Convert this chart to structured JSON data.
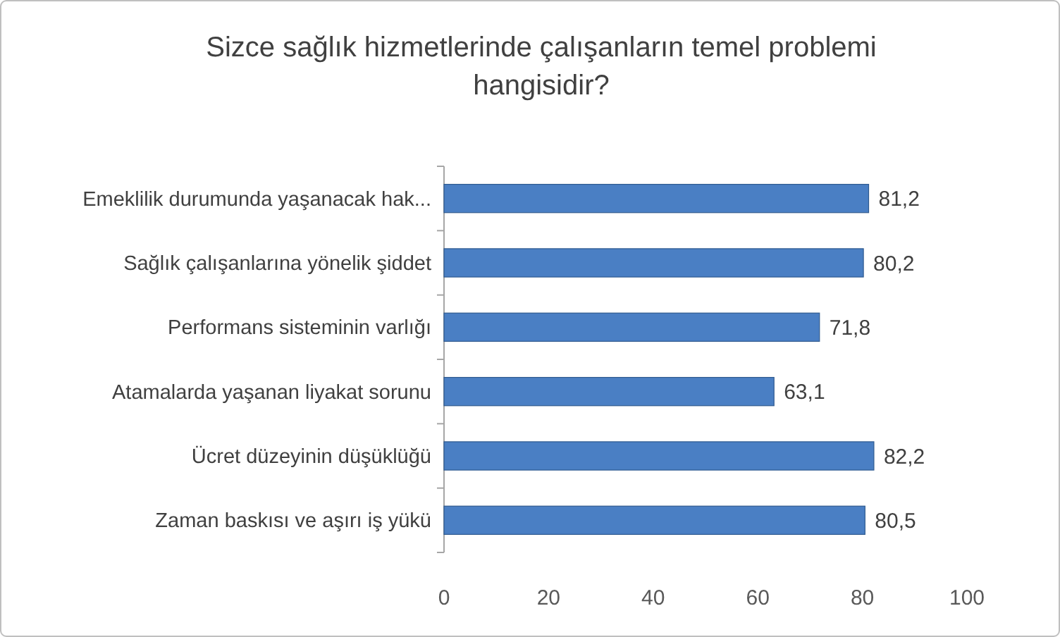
{
  "chart_data": {
    "type": "bar",
    "orientation": "horizontal",
    "title": "Sizce sağlık hizmetlerinde çalışanların temel problemi hangisidir?",
    "categories": [
      "Emeklilik durumunda yaşanacak hak...",
      "Sağlık çalışanlarına yönelik şiddet",
      "Performans sisteminin varlığı",
      "Atamalarda yaşanan liyakat sorunu",
      "Ücret düzeyinin düşüklüğü",
      "Zaman baskısı ve aşırı iş yükü"
    ],
    "values": [
      81.2,
      80.2,
      71.8,
      63.1,
      82.2,
      80.5
    ],
    "value_labels": [
      "81,2",
      "80,2",
      "71,8",
      "63,1",
      "82,2",
      "80,5"
    ],
    "color": "#4a7fc4",
    "xlim": [
      0,
      100
    ],
    "xticks": [
      0,
      20,
      40,
      60,
      80,
      100
    ]
  }
}
